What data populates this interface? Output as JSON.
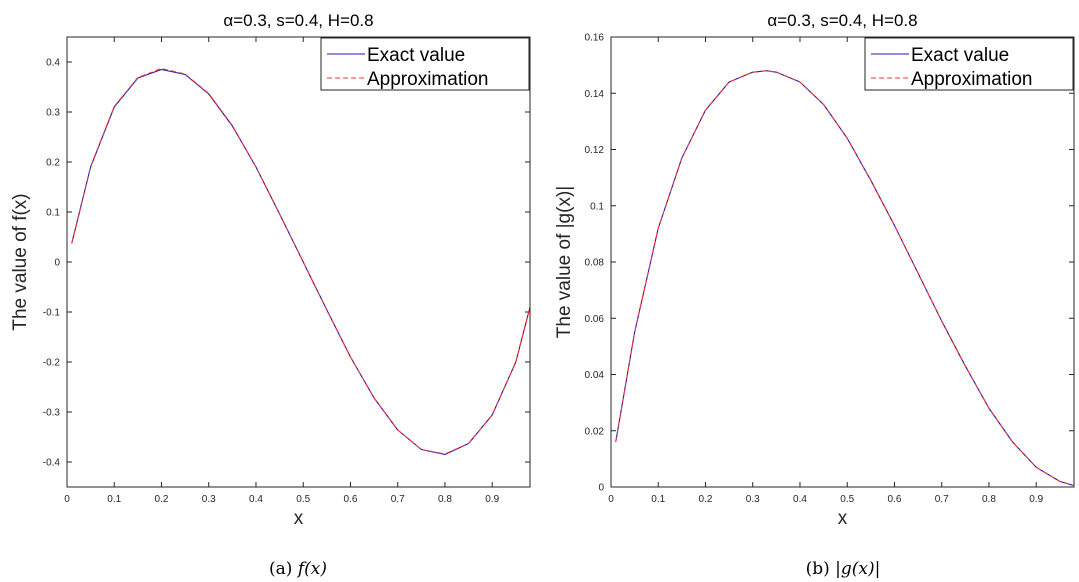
{
  "colors": {
    "exact": "#1a1ab0",
    "approx": "#ff3030",
    "axis": "#262626"
  },
  "chart_data": [
    {
      "type": "line",
      "title": "α=0.3, s=0.4, H=0.8",
      "xlabel": "x",
      "ylabel": "The value of f(x)",
      "xlim": [
        0,
        0.98
      ],
      "ylim": [
        -0.45,
        0.45
      ],
      "xticks": [
        "0",
        "0.1",
        "0.2",
        "0.3",
        "0.4",
        "0.5",
        "0.6",
        "0.7",
        "0.8",
        "0.9"
      ],
      "yticks": [
        "-0.4",
        "-0.3",
        "-0.2",
        "-0.1",
        "0",
        "0.1",
        "0.2",
        "0.3",
        "0.4"
      ],
      "legend_position": "top-right",
      "caption_prefix": "(a)",
      "caption_math": "f(x)",
      "series": [
        {
          "name": "Exact value",
          "style": "solid",
          "x": [
            0.01,
            0.05,
            0.1,
            0.15,
            0.2,
            0.25,
            0.3,
            0.35,
            0.4,
            0.45,
            0.5,
            0.55,
            0.6,
            0.65,
            0.7,
            0.75,
            0.8,
            0.85,
            0.9,
            0.95,
            0.98
          ],
          "y": [
            0.037,
            0.19,
            0.31,
            0.368,
            0.385,
            0.375,
            0.336,
            0.272,
            0.19,
            0.096,
            0.0,
            -0.096,
            -0.19,
            -0.272,
            -0.336,
            -0.375,
            -0.385,
            -0.363,
            -0.306,
            -0.2,
            -0.09
          ]
        },
        {
          "name": "Approximation",
          "style": "dashed",
          "x": [
            0.01,
            0.05,
            0.1,
            0.15,
            0.2,
            0.25,
            0.3,
            0.35,
            0.4,
            0.45,
            0.5,
            0.55,
            0.6,
            0.65,
            0.7,
            0.75,
            0.8,
            0.85,
            0.9,
            0.95,
            0.98
          ],
          "y": [
            0.037,
            0.191,
            0.311,
            0.369,
            0.387,
            0.376,
            0.337,
            0.273,
            0.19,
            0.096,
            0.0,
            -0.096,
            -0.19,
            -0.272,
            -0.336,
            -0.375,
            -0.384,
            -0.363,
            -0.306,
            -0.2,
            -0.09
          ]
        }
      ]
    },
    {
      "type": "line",
      "title": "α=0.3, s=0.4, H=0.8",
      "xlabel": "x",
      "ylabel": "The value of |g(x)|",
      "xlim": [
        0,
        0.98
      ],
      "ylim": [
        0,
        0.16
      ],
      "xticks": [
        "0",
        "0.1",
        "0.2",
        "0.3",
        "0.4",
        "0.5",
        "0.6",
        "0.7",
        "0.8",
        "0.9"
      ],
      "yticks": [
        "0",
        "0.02",
        "0.04",
        "0.06",
        "0.08",
        "0.1",
        "0.12",
        "0.14",
        "0.16"
      ],
      "legend_position": "top-right",
      "caption_prefix": "(b)",
      "caption_math": "|g(x)|",
      "series": [
        {
          "name": "Exact value",
          "style": "solid",
          "x": [
            0.01,
            0.05,
            0.1,
            0.15,
            0.2,
            0.25,
            0.3,
            0.33,
            0.35,
            0.4,
            0.45,
            0.5,
            0.55,
            0.6,
            0.65,
            0.7,
            0.75,
            0.8,
            0.85,
            0.9,
            0.95,
            0.98
          ],
          "y": [
            0.016,
            0.055,
            0.092,
            0.117,
            0.134,
            0.144,
            0.1475,
            0.148,
            0.1475,
            0.144,
            0.136,
            0.124,
            0.109,
            0.093,
            0.076,
            0.059,
            0.043,
            0.028,
            0.016,
            0.007,
            0.002,
            0.0005
          ]
        },
        {
          "name": "Approximation",
          "style": "dashed",
          "x": [
            0.01,
            0.05,
            0.1,
            0.15,
            0.2,
            0.25,
            0.3,
            0.33,
            0.35,
            0.4,
            0.45,
            0.5,
            0.55,
            0.6,
            0.65,
            0.7,
            0.75,
            0.8,
            0.85,
            0.9,
            0.95,
            0.98
          ],
          "y": [
            0.016,
            0.055,
            0.092,
            0.117,
            0.134,
            0.144,
            0.1475,
            0.148,
            0.1475,
            0.144,
            0.136,
            0.124,
            0.109,
            0.093,
            0.076,
            0.059,
            0.043,
            0.028,
            0.016,
            0.007,
            0.002,
            0.0005
          ]
        }
      ]
    }
  ]
}
